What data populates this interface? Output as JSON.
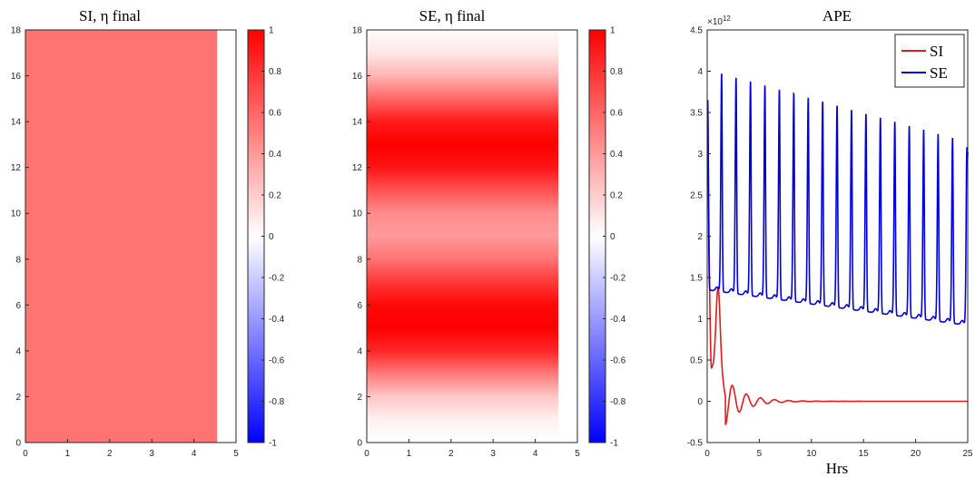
{
  "chart_data": [
    {
      "type": "heatmap",
      "title": "SI, η final",
      "xlim": [
        0,
        5
      ],
      "ylim": [
        0,
        18
      ],
      "x_ticks": [
        "0",
        "1",
        "2",
        "3",
        "4",
        "5"
      ],
      "y_ticks": [
        "0",
        "2",
        "4",
        "6",
        "8",
        "10",
        "12",
        "14",
        "16",
        "18"
      ],
      "data_extent_x": [
        0,
        4.55
      ],
      "data_extent_y": [
        0,
        18
      ],
      "field": "uniform",
      "value": 0.55,
      "colormap": "blue-white-red",
      "clim": [
        -1,
        1
      ],
      "colorbar_ticks": [
        "1",
        "0.8",
        "0.6",
        "0.4",
        "0.2",
        "0",
        "-0.2",
        "-0.4",
        "-0.6",
        "-0.8",
        "-1"
      ]
    },
    {
      "type": "heatmap",
      "title": "SE, η final",
      "xlim": [
        0,
        5
      ],
      "ylim": [
        0,
        18
      ],
      "x_ticks": [
        "0",
        "1",
        "2",
        "3",
        "4",
        "5"
      ],
      "y_ticks": [
        "0",
        "2",
        "4",
        "6",
        "8",
        "10",
        "12",
        "14",
        "16",
        "18"
      ],
      "data_extent_x": [
        0,
        4.55
      ],
      "data_extent_y": [
        0,
        18
      ],
      "field": "bands",
      "profile_y": [
        0,
        1,
        2,
        3,
        4,
        5,
        6,
        7,
        8,
        9,
        10,
        11,
        12,
        13,
        14,
        15,
        16,
        17,
        18
      ],
      "profile_value": [
        0.0,
        0.06,
        0.22,
        0.52,
        0.85,
        1.0,
        0.97,
        0.78,
        0.55,
        0.4,
        0.45,
        0.68,
        0.92,
        1.0,
        0.9,
        0.6,
        0.3,
        0.1,
        0.02
      ],
      "colormap": "blue-white-red",
      "clim": [
        -1,
        1
      ],
      "colorbar_ticks": [
        "1",
        "0.8",
        "0.6",
        "0.4",
        "0.2",
        "0",
        "-0.2",
        "-0.4",
        "-0.6",
        "-0.8",
        "-1"
      ]
    },
    {
      "type": "line",
      "title": "APE",
      "xlabel": "Hrs",
      "ylabel": "",
      "xlim": [
        0,
        25
      ],
      "ylim": [
        -0.5,
        4.5
      ],
      "y_exponent": "×10",
      "y_exponent_power": "12",
      "x_ticks": [
        "0",
        "5",
        "10",
        "15",
        "20",
        "25"
      ],
      "y_ticks": [
        "-0.5",
        "0",
        "0.5",
        "1",
        "1.5",
        "2",
        "2.5",
        "3",
        "3.5",
        "4",
        "4.5"
      ],
      "legend_position": "top-right",
      "series": [
        {
          "name": "SI",
          "color": "#e41a1c",
          "model": "damped",
          "start": 3.65,
          "x_start": 0.05,
          "period": 1.35,
          "first_trough": 0.4,
          "first_peak": 1.38,
          "decay": 0.55,
          "floor": 0.0
        },
        {
          "name": "SE",
          "color": "#0000dd",
          "model": "spikes",
          "start": 3.65,
          "x_start": 0.05,
          "period": 1.385,
          "peaks_first": 4.02,
          "peaks_last": 3.14,
          "baseline_first": 1.35,
          "baseline_last": 0.92,
          "end_value": 3.02
        }
      ]
    }
  ],
  "legend": {
    "items": [
      {
        "label": "SI",
        "color": "#e41a1c"
      },
      {
        "label": "SE",
        "color": "#0000dd"
      }
    ]
  }
}
